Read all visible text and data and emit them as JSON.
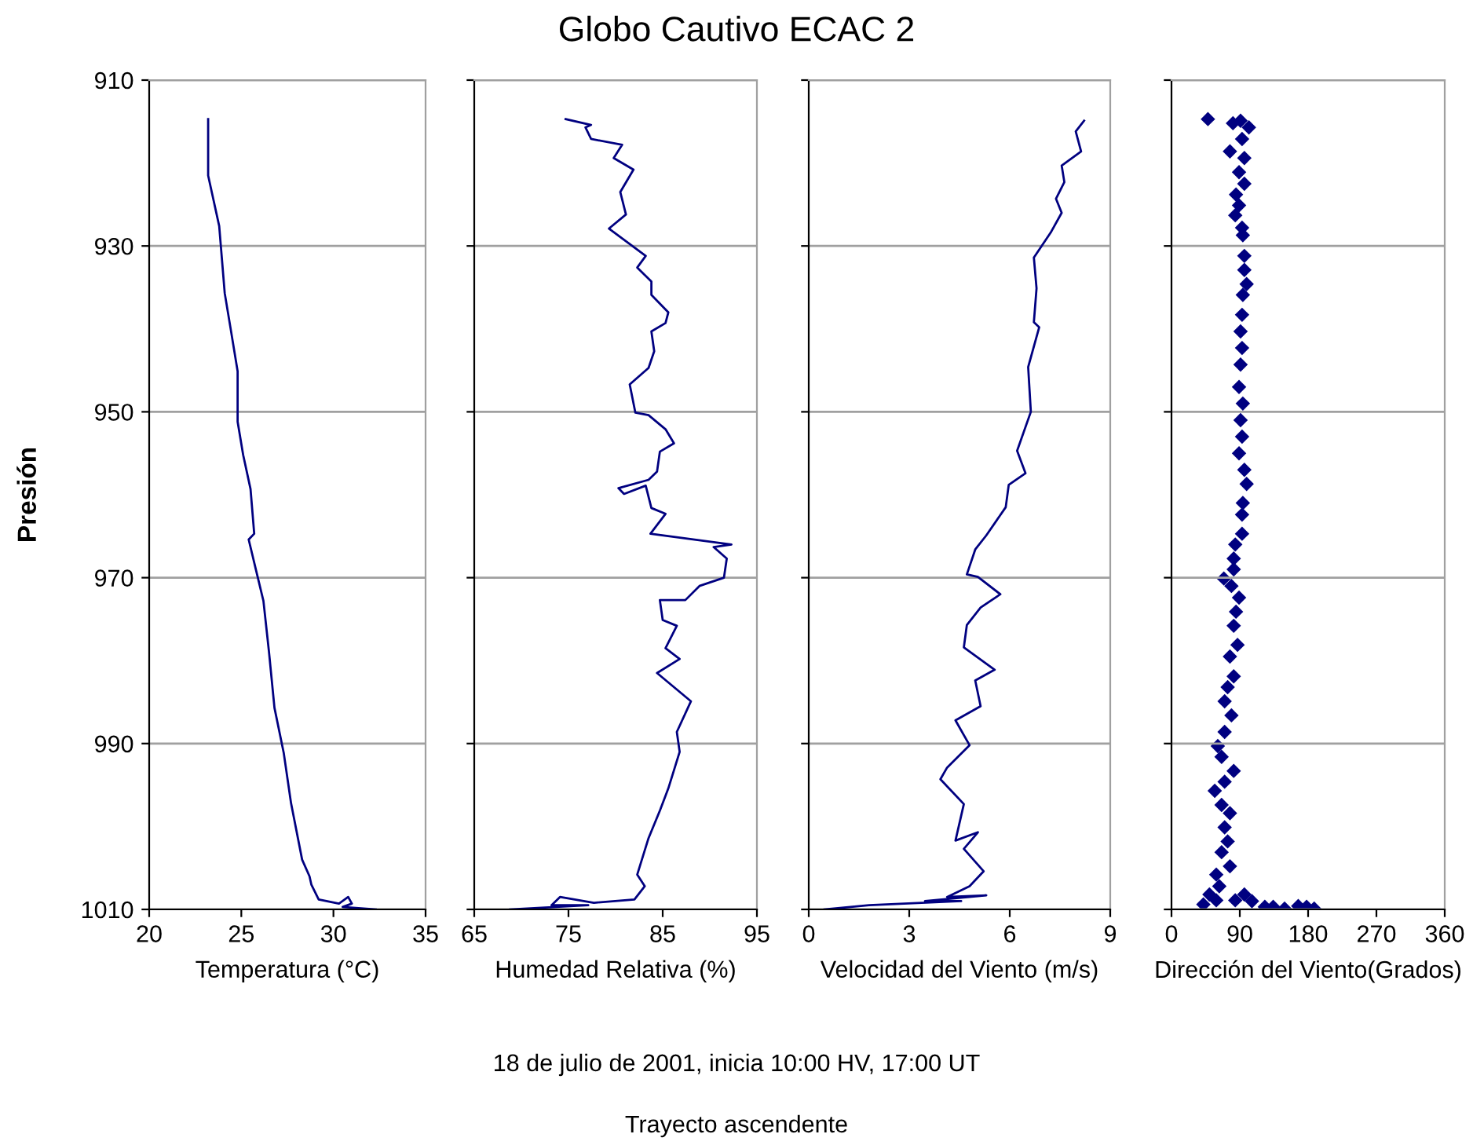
{
  "chart_data": [
    {
      "type": "line",
      "xlabel": "Temperatura (°C)",
      "ylabel": "Presión",
      "xlim": [
        20,
        35
      ],
      "xticks": [
        20,
        25,
        30,
        35
      ],
      "ylim": [
        1010,
        910
      ],
      "yticks": [
        910,
        930,
        950,
        970,
        990,
        1010
      ],
      "grid": "y",
      "marker": "none",
      "line_style": "solid",
      "series": [
        {
          "color": "#000080",
          "x": [
            23.2,
            23.2,
            23.8,
            23.9,
            24.1,
            24.4,
            24.8,
            24.8,
            25.1,
            25.5,
            25.7,
            25.4,
            25.8,
            26.2,
            26.5,
            26.8,
            27.3,
            27.7,
            28.3,
            28.7,
            28.8,
            29.2,
            30.3,
            30.8,
            31.0,
            30.5,
            32.3
          ],
          "values": [
            914.7,
            921.5,
            927.6,
            930.3,
            935.7,
            939.7,
            945.1,
            951.2,
            955.2,
            959.3,
            964.7,
            965.4,
            969.1,
            972.8,
            978.9,
            985.7,
            991.1,
            997.2,
            1004,
            1006,
            1007,
            1008.8,
            1009.3,
            1008.5,
            1009.3,
            1009.7,
            1010
          ]
        }
      ]
    },
    {
      "type": "line",
      "title": "Globo Cautivo ECAC 2",
      "annotations": [
        "18 de julio de 2001, inicia 10:00 HV, 17:00 UT",
        "Trayecto ascendente"
      ],
      "xlabel": "Humedad Relativa (%)",
      "xlim": [
        65,
        95
      ],
      "xticks": [
        65,
        75,
        85,
        95
      ],
      "ylim": [
        1010,
        910
      ],
      "yticks": [
        910,
        930,
        950,
        970,
        990,
        1010
      ],
      "tick_labels": "x",
      "grid": "y",
      "marker": "none",
      "line_style": "solid",
      "series": [
        {
          "color": "#000080",
          "x": [
            74.7,
            77.4,
            76.8,
            77.4,
            80.7,
            79.8,
            81.9,
            80.5,
            81.1,
            79.3,
            83.2,
            82.3,
            83.8,
            83.8,
            85.6,
            85.3,
            83.8,
            84.1,
            83.5,
            81.5,
            82.1,
            83.5,
            85.3,
            86.2,
            84.7,
            84.4,
            83.5,
            80.3,
            80.9,
            83.2,
            83.8,
            85.3,
            83.7,
            92.3,
            90.4,
            91.8,
            91.5,
            88.9,
            87.4,
            84.7,
            85.0,
            86.5,
            85.3,
            86.8,
            84.4,
            88.0,
            86.5,
            86.8,
            85.6,
            84.7,
            83.5,
            82.3,
            83.1,
            82.0,
            77.7,
            74.1,
            73.2,
            77.1,
            68.8
          ],
          "values": [
            914.7,
            915.4,
            915.7,
            917.1,
            917.8,
            919.4,
            920.8,
            923.5,
            926.2,
            927.9,
            931.2,
            932.6,
            934.3,
            935.9,
            938,
            939.3,
            940.3,
            942.7,
            944.7,
            946.7,
            950.1,
            950.4,
            952.1,
            953.8,
            954.8,
            957.2,
            958.2,
            959.2,
            959.9,
            958.9,
            961.6,
            962.3,
            964.7,
            966,
            966.3,
            967.7,
            970,
            971,
            972.7,
            972.7,
            975.1,
            975.8,
            978.5,
            979.8,
            981.5,
            984.9,
            988.6,
            991,
            995.4,
            998.1,
            1001.4,
            1005.8,
            1007.2,
            1008.8,
            1009.2,
            1008.5,
            1009.5,
            1009.5,
            1010
          ]
        }
      ]
    },
    {
      "type": "line",
      "xlabel": "Velocidad del Viento (m/s)",
      "xlim": [
        0,
        9
      ],
      "xticks": [
        0,
        3,
        6,
        9
      ],
      "ylim": [
        1010,
        910
      ],
      "yticks": [
        910,
        930,
        950,
        970,
        990,
        1010
      ],
      "tick_labels": "x",
      "grid": "y",
      "marker": "none",
      "line_style": "solid",
      "series": [
        {
          "color": "#000080",
          "x": [
            8.22,
            7.97,
            8.13,
            7.55,
            7.63,
            7.38,
            7.55,
            7.22,
            6.72,
            6.8,
            6.72,
            6.88,
            6.55,
            6.63,
            6.22,
            6.47,
            5.97,
            5.88,
            5.3,
            4.97,
            4.72,
            5.05,
            5.72,
            5.13,
            4.72,
            4.63,
            5.55,
            4.97,
            5.13,
            4.38,
            4.8,
            4.13,
            3.93,
            4.63,
            4.38,
            5.05,
            4.63,
            5.22,
            4.8,
            4.13,
            5.3,
            3.47,
            4.55,
            1.8,
            0.47
          ],
          "values": [
            914.9,
            916.2,
            918.6,
            920.3,
            922.3,
            924.3,
            926,
            928.4,
            931.4,
            935.1,
            939.2,
            939.8,
            944.6,
            950,
            954.7,
            957.4,
            958.8,
            961.5,
            964.9,
            966.6,
            969.6,
            969.9,
            972,
            973.6,
            975.7,
            978.4,
            981.1,
            982.4,
            985.5,
            987.2,
            990.2,
            992.9,
            994.3,
            997.3,
            1001.7,
            1000.7,
            1002.7,
            1005.4,
            1007.2,
            1008.5,
            1008.3,
            1009,
            1009,
            1009.5,
            1010
          ]
        }
      ]
    },
    {
      "type": "scatter",
      "xlabel": "Dirección del Viento(Grados)",
      "xlim": [
        0,
        360
      ],
      "xticks": [
        0,
        90,
        180,
        270,
        360
      ],
      "ylim": [
        1010,
        910
      ],
      "yticks": [
        910,
        930,
        950,
        970,
        990,
        1010
      ],
      "tick_labels": "x",
      "grid": "y",
      "marker": "diamond",
      "series": [
        {
          "color": "#000080",
          "x": [
            48,
            81,
            91,
            102,
            93,
            77,
            96,
            89,
            96,
            85,
            89,
            84,
            93,
            94,
            96,
            96,
            99,
            94,
            93,
            91,
            93,
            91,
            89,
            94,
            91,
            93,
            89,
            96,
            99,
            94,
            93,
            93,
            84,
            82,
            82,
            69,
            79,
            89,
            85,
            82,
            87,
            77,
            82,
            74,
            70,
            79,
            70,
            61,
            66,
            82,
            70,
            57,
            66,
            77,
            70,
            74,
            66,
            77,
            59,
            63,
            50,
            42,
            59,
            84,
            96,
            106,
            123,
            134,
            149,
            167,
            178,
            188
          ],
          "values": [
            914.7,
            915.2,
            914.9,
            915.7,
            917.1,
            918.6,
            919.4,
            921.1,
            922.5,
            923.8,
            925.1,
            926.3,
            927.8,
            928.7,
            931.2,
            932.9,
            934.6,
            935.9,
            938.3,
            940.3,
            942.3,
            944.3,
            947,
            949,
            951,
            953,
            955,
            957,
            958.7,
            961,
            962.4,
            964.7,
            966,
            967.7,
            969,
            970.1,
            971,
            972.4,
            974.1,
            975.8,
            978.1,
            979.5,
            981.9,
            983.2,
            984.9,
            986.6,
            988.6,
            990.3,
            991.6,
            993.3,
            994.6,
            995.7,
            997.4,
            998.4,
            1000.1,
            1001.8,
            1003.1,
            1004.8,
            1005.8,
            1007.2,
            1008.2,
            1009.4,
            1008.9,
            1008.9,
            1008.2,
            1009,
            1009.7,
            1009.7,
            1009.9,
            1009.6,
            1009.7,
            1009.9
          ]
        }
      ]
    }
  ]
}
